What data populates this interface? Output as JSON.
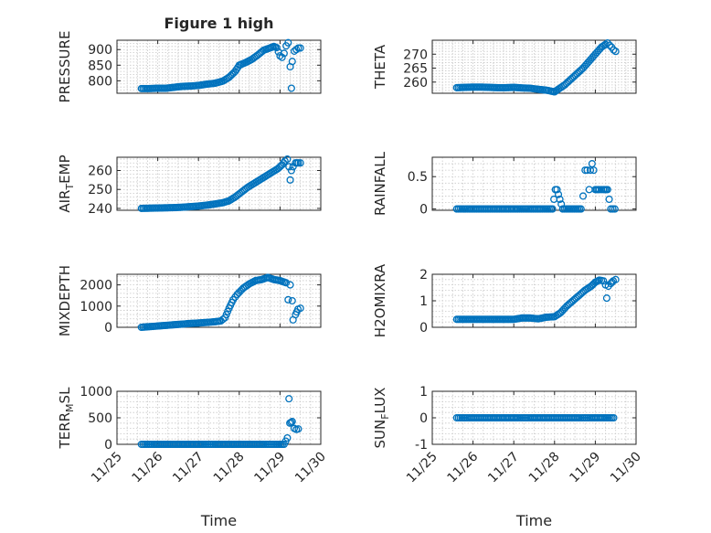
{
  "figure_title": "Figure 1 high",
  "colors": {
    "marker": "#0072BD",
    "axis": "#262626",
    "grid": "#c8c8c8"
  },
  "chart_data": [
    {
      "type": "scatter",
      "row": 0,
      "col": 0,
      "title": "Figure 1 high",
      "ylabel": "PRESSURE",
      "ylabel_sub": "",
      "xlabel": "",
      "ylim": [
        760,
        930
      ],
      "yticks": [
        800,
        850,
        900
      ],
      "ytick_labels": [
        "800",
        "850",
        "900"
      ],
      "series": [
        {
          "points": [
            [
              25.6,
              775
            ],
            [
              25.8,
              775
            ],
            [
              26.0,
              776
            ],
            [
              26.2,
              776
            ],
            [
              26.4,
              779
            ],
            [
              26.6,
              782
            ],
            [
              26.8,
              783
            ],
            [
              27.0,
              785
            ],
            [
              27.2,
              789
            ],
            [
              27.4,
              792
            ],
            [
              27.6,
              799
            ],
            [
              27.75,
              811
            ],
            [
              27.9,
              830
            ],
            [
              28.0,
              850
            ],
            [
              28.15,
              858
            ],
            [
              28.3,
              868
            ],
            [
              28.45,
              882
            ],
            [
              28.6,
              898
            ],
            [
              28.75,
              905
            ],
            [
              28.85,
              910
            ],
            [
              28.92,
              906
            ],
            [
              29.0,
              880
            ],
            [
              29.05,
              875
            ],
            [
              29.1,
              888
            ],
            [
              29.15,
              912
            ],
            [
              29.2,
              922
            ],
            [
              29.25,
              845
            ],
            [
              29.28,
              776
            ],
            [
              29.3,
              862
            ],
            [
              29.35,
              895
            ],
            [
              29.4,
              900
            ],
            [
              29.45,
              905
            ],
            [
              29.5,
              905
            ]
          ]
        }
      ]
    },
    {
      "type": "scatter",
      "row": 0,
      "col": 1,
      "title": "",
      "ylabel": "THETA",
      "ylabel_sub": "",
      "xlabel": "",
      "ylim": [
        256,
        275
      ],
      "yticks": [
        260,
        265,
        270
      ],
      "ytick_labels": [
        "260",
        "265",
        "270"
      ],
      "series": [
        {
          "points": [
            [
              25.6,
              258.0
            ],
            [
              25.8,
              258.1
            ],
            [
              26.0,
              258.2
            ],
            [
              26.2,
              258.2
            ],
            [
              26.4,
              258.1
            ],
            [
              26.6,
              258.0
            ],
            [
              26.8,
              258.0
            ],
            [
              27.0,
              258.1
            ],
            [
              27.2,
              257.9
            ],
            [
              27.4,
              257.8
            ],
            [
              27.6,
              257.4
            ],
            [
              27.8,
              257.1
            ],
            [
              27.9,
              256.8
            ],
            [
              28.0,
              256.5
            ],
            [
              28.1,
              257.5
            ],
            [
              28.25,
              259.0
            ],
            [
              28.4,
              261.0
            ],
            [
              28.55,
              263.0
            ],
            [
              28.7,
              265.0
            ],
            [
              28.85,
              267.5
            ],
            [
              29.0,
              270.0
            ],
            [
              29.15,
              272.5
            ],
            [
              29.25,
              273.5
            ],
            [
              29.3,
              274.0
            ],
            [
              29.35,
              273.2
            ],
            [
              29.4,
              272.5
            ],
            [
              29.45,
              271.5
            ],
            [
              29.5,
              271.0
            ]
          ]
        }
      ]
    },
    {
      "type": "scatter",
      "row": 1,
      "col": 0,
      "title": "",
      "ylabel": "AIR",
      "ylabel_sub": "T",
      "ylabel_end": "EMP",
      "xlabel": "",
      "ylim": [
        239,
        267
      ],
      "yticks": [
        240,
        250,
        260
      ],
      "ytick_labels": [
        "240",
        "250",
        "260"
      ],
      "series": [
        {
          "points": [
            [
              25.6,
              240.0
            ],
            [
              25.8,
              240.1
            ],
            [
              26.0,
              240.2
            ],
            [
              26.2,
              240.3
            ],
            [
              26.4,
              240.4
            ],
            [
              26.6,
              240.6
            ],
            [
              26.8,
              240.9
            ],
            [
              27.0,
              241.2
            ],
            [
              27.2,
              241.7
            ],
            [
              27.4,
              242.3
            ],
            [
              27.6,
              243.0
            ],
            [
              27.75,
              244.0
            ],
            [
              27.9,
              246.0
            ],
            [
              28.05,
              248.5
            ],
            [
              28.2,
              251.0
            ],
            [
              28.35,
              253.0
            ],
            [
              28.5,
              255.0
            ],
            [
              28.65,
              257.0
            ],
            [
              28.8,
              259.0
            ],
            [
              28.95,
              261.0
            ],
            [
              29.05,
              263.0
            ],
            [
              29.12,
              265.0
            ],
            [
              29.18,
              266.0
            ],
            [
              29.22,
              262.0
            ],
            [
              29.25,
              255.0
            ],
            [
              29.28,
              260.0
            ],
            [
              29.32,
              262.0
            ],
            [
              29.38,
              264.0
            ],
            [
              29.45,
              264.0
            ],
            [
              29.5,
              264.0
            ]
          ]
        }
      ]
    },
    {
      "type": "scatter",
      "row": 1,
      "col": 1,
      "title": "",
      "ylabel": "RAINFALL",
      "ylabel_sub": "",
      "xlabel": "",
      "ylim": [
        -0.02,
        0.8
      ],
      "yticks": [
        0,
        0.5
      ],
      "ytick_labels": [
        "0",
        "0.5"
      ],
      "series": [
        {
          "points": [
            [
              25.6,
              0
            ],
            [
              25.9,
              0
            ],
            [
              26.2,
              0
            ],
            [
              26.5,
              0
            ],
            [
              26.8,
              0
            ],
            [
              27.1,
              0
            ],
            [
              27.4,
              0
            ],
            [
              27.7,
              0
            ],
            [
              27.95,
              0
            ],
            [
              28.02,
              0.3
            ],
            [
              28.06,
              0.3
            ],
            [
              28.2,
              0
            ],
            [
              28.45,
              0
            ],
            [
              28.65,
              0
            ],
            [
              28.7,
              0.2
            ],
            [
              28.75,
              0.6
            ],
            [
              28.8,
              0.6
            ],
            [
              28.85,
              0.3
            ],
            [
              28.88,
              0.6
            ],
            [
              28.92,
              0.7
            ],
            [
              28.96,
              0.6
            ],
            [
              29.0,
              0.3
            ],
            [
              29.1,
              0.3
            ],
            [
              29.2,
              0.3
            ],
            [
              29.3,
              0.3
            ],
            [
              29.38,
              0
            ],
            [
              29.43,
              0
            ],
            [
              29.48,
              0
            ]
          ]
        }
      ]
    },
    {
      "type": "scatter",
      "row": 2,
      "col": 0,
      "title": "",
      "ylabel": "MIXDEPTH",
      "ylabel_sub": "",
      "xlabel": "",
      "ylim": [
        0,
        2500
      ],
      "yticks": [
        0,
        1000,
        2000
      ],
      "ytick_labels": [
        "0",
        "1000",
        "2000"
      ],
      "series": [
        {
          "points": [
            [
              25.6,
              0
            ],
            [
              25.8,
              30
            ],
            [
              26.0,
              60
            ],
            [
              26.2,
              90
            ],
            [
              26.4,
              120
            ],
            [
              26.6,
              150
            ],
            [
              26.8,
              180
            ],
            [
              27.0,
              200
            ],
            [
              27.2,
              230
            ],
            [
              27.4,
              260
            ],
            [
              27.55,
              300
            ],
            [
              27.65,
              450
            ],
            [
              27.75,
              900
            ],
            [
              27.85,
              1300
            ],
            [
              27.95,
              1550
            ],
            [
              28.1,
              1850
            ],
            [
              28.25,
              2050
            ],
            [
              28.4,
              2200
            ],
            [
              28.55,
              2250
            ],
            [
              28.7,
              2350
            ],
            [
              28.85,
              2250
            ],
            [
              29.0,
              2200
            ],
            [
              29.15,
              2100
            ],
            [
              29.2,
              1300
            ],
            [
              29.25,
              2000
            ],
            [
              29.3,
              1250
            ],
            [
              29.32,
              350
            ],
            [
              29.38,
              600
            ],
            [
              29.44,
              850
            ],
            [
              29.5,
              900
            ]
          ]
        }
      ]
    },
    {
      "type": "scatter",
      "row": 2,
      "col": 1,
      "title": "",
      "ylabel": "H2OMIXRA",
      "ylabel_sub": "",
      "xlabel": "",
      "ylim": [
        0,
        2
      ],
      "yticks": [
        0,
        1,
        2
      ],
      "ytick_labels": [
        "0",
        "1",
        "2"
      ],
      "series": [
        {
          "points": [
            [
              25.6,
              0.3
            ],
            [
              25.8,
              0.3
            ],
            [
              26.0,
              0.3
            ],
            [
              26.2,
              0.3
            ],
            [
              26.4,
              0.3
            ],
            [
              26.6,
              0.3
            ],
            [
              26.8,
              0.3
            ],
            [
              27.0,
              0.3
            ],
            [
              27.2,
              0.35
            ],
            [
              27.4,
              0.35
            ],
            [
              27.6,
              0.32
            ],
            [
              27.8,
              0.38
            ],
            [
              28.0,
              0.4
            ],
            [
              28.15,
              0.55
            ],
            [
              28.3,
              0.8
            ],
            [
              28.45,
              1.0
            ],
            [
              28.6,
              1.2
            ],
            [
              28.75,
              1.4
            ],
            [
              28.9,
              1.55
            ],
            [
              29.0,
              1.7
            ],
            [
              29.1,
              1.78
            ],
            [
              29.2,
              1.75
            ],
            [
              29.25,
              1.6
            ],
            [
              29.28,
              1.1
            ],
            [
              29.32,
              1.55
            ],
            [
              29.38,
              1.65
            ],
            [
              29.44,
              1.75
            ],
            [
              29.5,
              1.8
            ]
          ]
        }
      ]
    },
    {
      "type": "scatter",
      "row": 3,
      "col": 0,
      "title": "",
      "ylabel": "TERR",
      "ylabel_sub": "M",
      "ylabel_end": "SL",
      "xlabel": "Time",
      "ylim": [
        0,
        1000
      ],
      "yticks": [
        0,
        500,
        1000
      ],
      "ytick_labels": [
        "0",
        "500",
        "1000"
      ],
      "series": [
        {
          "points": [
            [
              25.6,
              0
            ],
            [
              25.9,
              0
            ],
            [
              26.2,
              0
            ],
            [
              26.5,
              0
            ],
            [
              26.8,
              0
            ],
            [
              27.1,
              0
            ],
            [
              27.4,
              0
            ],
            [
              27.7,
              0
            ],
            [
              28.0,
              0
            ],
            [
              28.3,
              0
            ],
            [
              28.6,
              0
            ],
            [
              28.9,
              0
            ],
            [
              29.1,
              0
            ],
            [
              29.18,
              120
            ],
            [
              29.22,
              860
            ],
            [
              29.24,
              400
            ],
            [
              29.3,
              430
            ],
            [
              29.35,
              300
            ],
            [
              29.4,
              280
            ],
            [
              29.45,
              290
            ]
          ]
        }
      ]
    },
    {
      "type": "scatter",
      "row": 3,
      "col": 1,
      "title": "",
      "ylabel": "SUN",
      "ylabel_sub": "F",
      "ylabel_end": "LUX",
      "xlabel": "Time",
      "ylim": [
        -1,
        1
      ],
      "yticks": [
        -1,
        0,
        1
      ],
      "ytick_labels": [
        "-1",
        "0",
        "1"
      ],
      "series": [
        {
          "points": [
            [
              25.6,
              0
            ],
            [
              25.9,
              0
            ],
            [
              26.2,
              0
            ],
            [
              26.5,
              0
            ],
            [
              26.8,
              0
            ],
            [
              27.1,
              0
            ],
            [
              27.4,
              0
            ],
            [
              27.7,
              0
            ],
            [
              28.0,
              0
            ],
            [
              28.3,
              0
            ],
            [
              28.6,
              0
            ],
            [
              28.9,
              0
            ],
            [
              29.2,
              0
            ],
            [
              29.45,
              0
            ]
          ]
        }
      ]
    }
  ],
  "xaxis": {
    "xlim": [
      25,
      30
    ],
    "ticks": [
      25,
      26,
      27,
      28,
      29,
      30
    ],
    "tick_labels": [
      "11/25",
      "11/26",
      "11/27",
      "11/28",
      "11/29",
      "11/30"
    ]
  }
}
